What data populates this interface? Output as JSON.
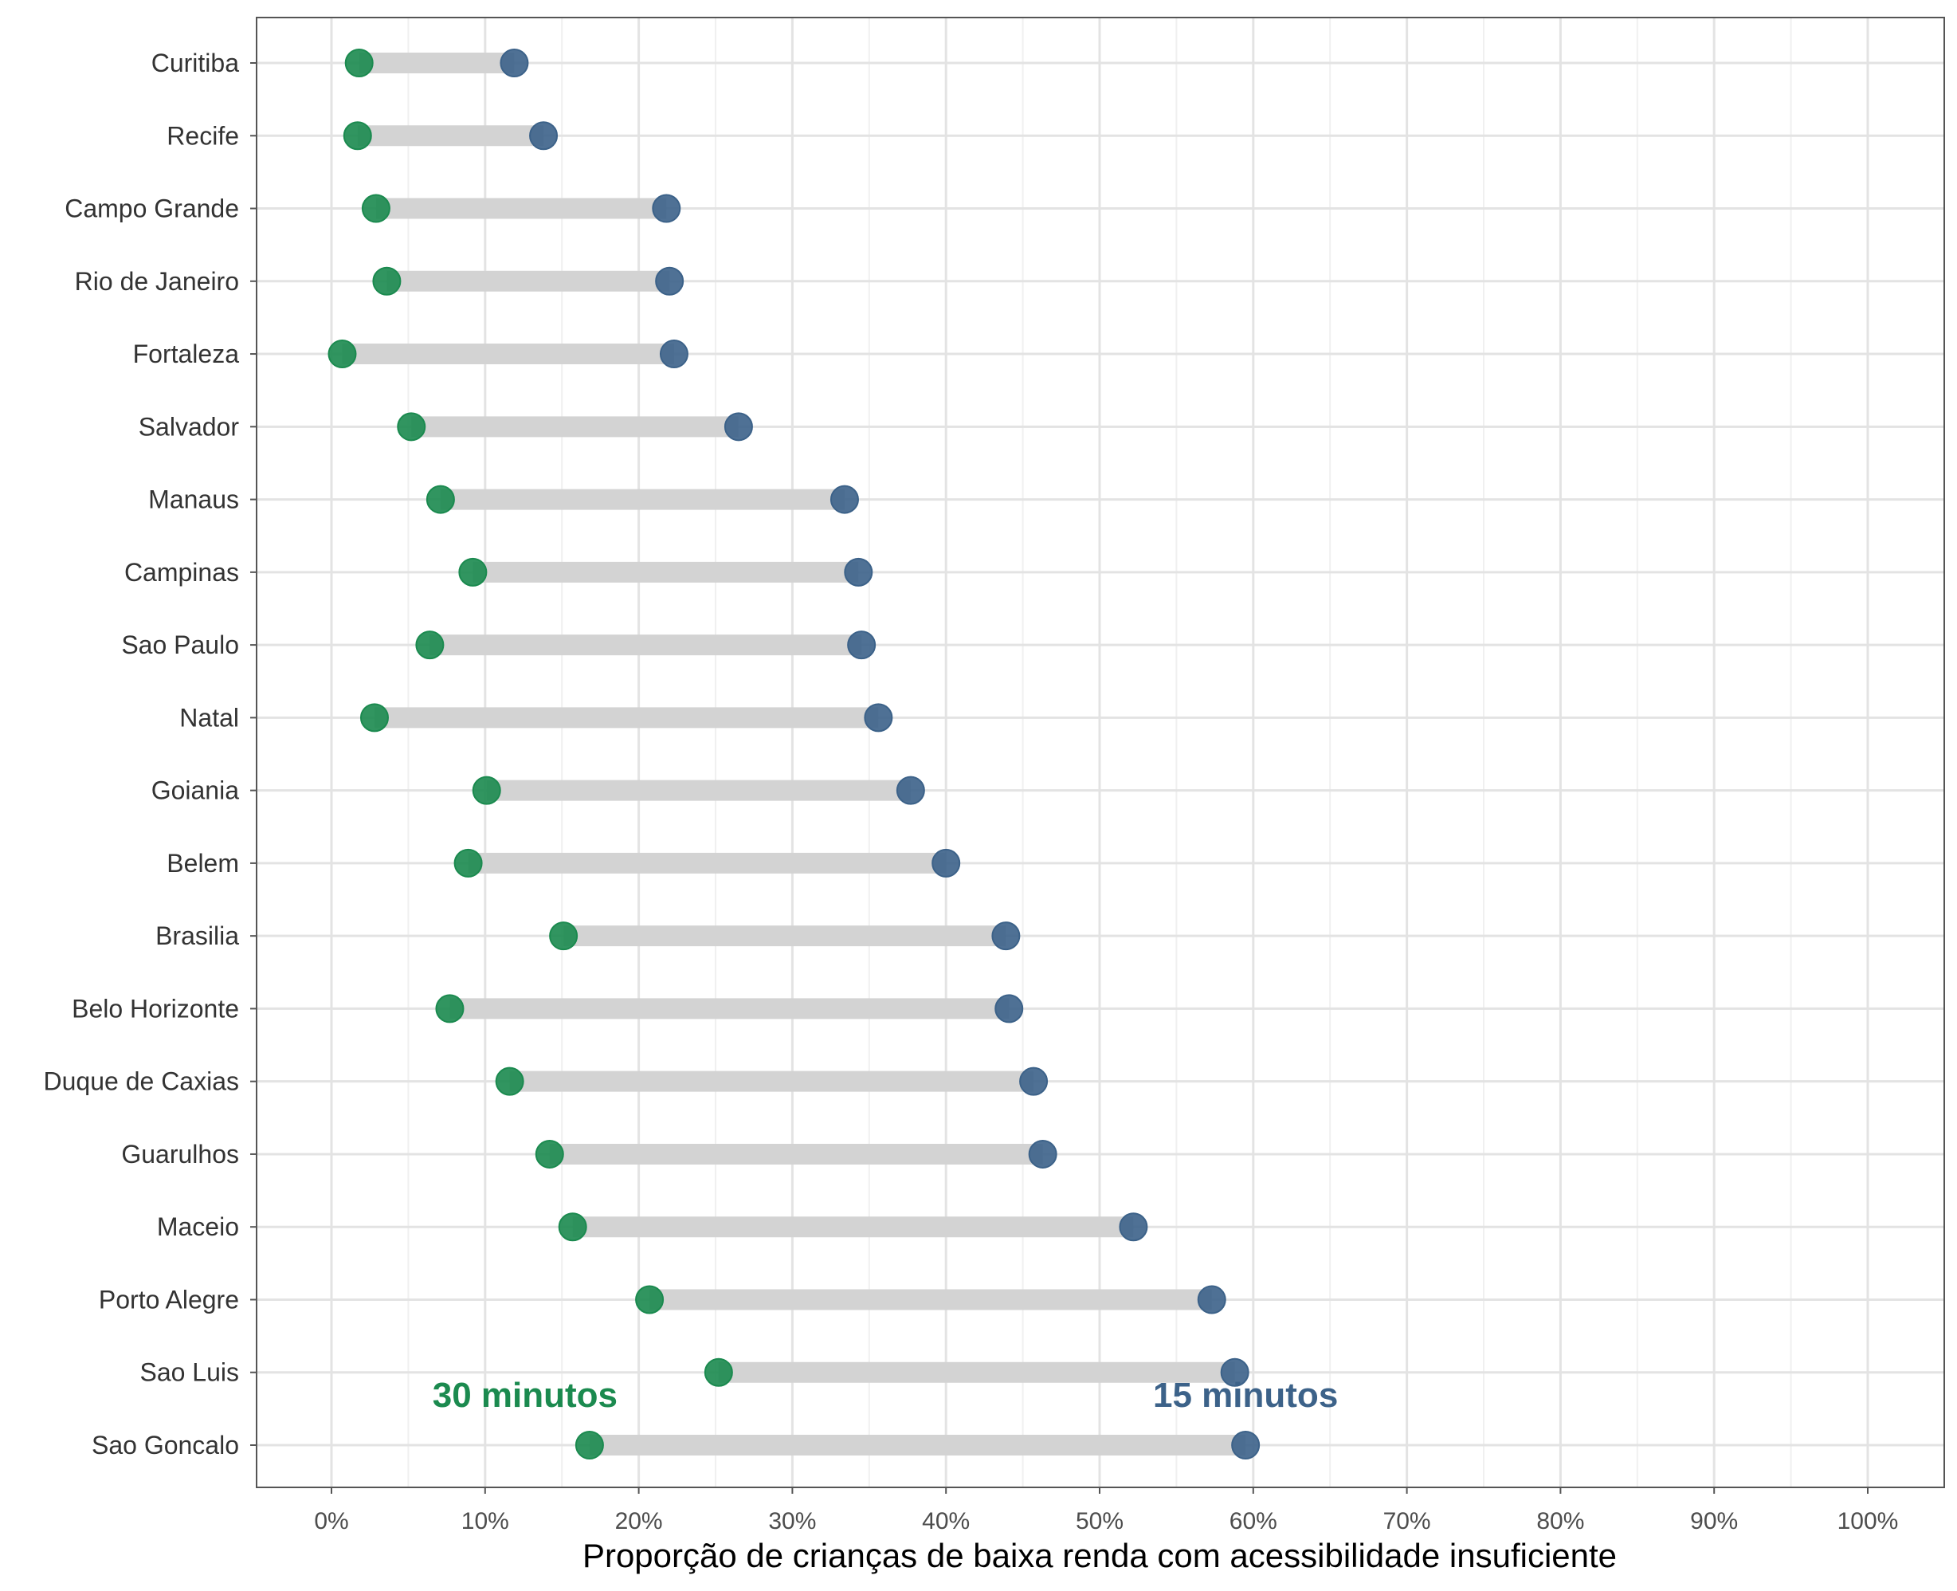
{
  "chart_data": {
    "type": "dumbbell",
    "xlabel": "Proporção de crianças de baixa renda com acessibilidade insuficiente",
    "xlim": [
      0,
      100
    ],
    "x_ticks": [
      0,
      10,
      20,
      30,
      40,
      50,
      60,
      70,
      80,
      90,
      100
    ],
    "x_tick_labels": [
      "0%",
      "10%",
      "20%",
      "30%",
      "40%",
      "50%",
      "60%",
      "70%",
      "80%",
      "90%",
      "100%"
    ],
    "grid": true,
    "categories": [
      "Curitiba",
      "Recife",
      "Campo Grande",
      "Rio de Janeiro",
      "Fortaleza",
      "Salvador",
      "Manaus",
      "Campinas",
      "Sao Paulo",
      "Natal",
      "Goiania",
      "Belem",
      "Brasilia",
      "Belo Horizonte",
      "Duque de Caxias",
      "Guarulhos",
      "Maceio",
      "Porto Alegre",
      "Sao Luis",
      "Sao Goncalo"
    ],
    "series": [
      {
        "name": "30 minutos",
        "color": "#1b8a4f",
        "values": [
          1.8,
          1.7,
          2.9,
          3.6,
          0.7,
          5.2,
          7.1,
          9.2,
          6.4,
          2.8,
          10.1,
          8.9,
          15.1,
          7.7,
          11.6,
          14.2,
          15.7,
          20.7,
          25.2,
          16.8
        ]
      },
      {
        "name": "15 minutos",
        "color": "#3c6289",
        "values": [
          11.9,
          13.8,
          21.8,
          22.0,
          22.3,
          26.5,
          33.4,
          34.3,
          34.5,
          35.6,
          37.7,
          40.0,
          43.9,
          44.1,
          45.7,
          46.3,
          52.2,
          57.3,
          58.8,
          59.5
        ]
      }
    ]
  }
}
